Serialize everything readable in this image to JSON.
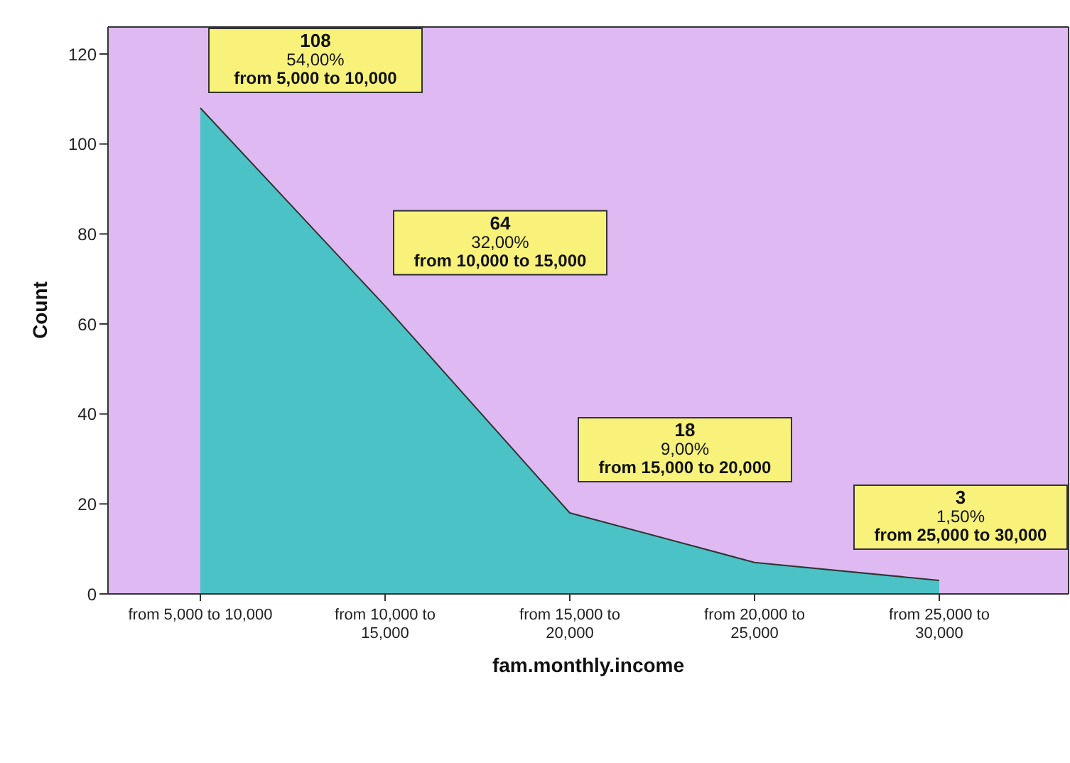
{
  "chart_data": {
    "type": "area",
    "xlabel": "fam.monthly.income",
    "ylabel": "Count",
    "categories": [
      "from 5,000 to 10,000",
      "from 10,000 to 15,000",
      "from 15,000 to 20,000",
      "from 20,000 to 25,000",
      "from 25,000 to 30,000"
    ],
    "series": [
      {
        "color": "#4bc3c6",
        "values": [
          108,
          64,
          18,
          7,
          3
        ],
        "value_labels": [
          "108\n54,00%\nfrom 5,000 to 10,000",
          "64\n32,00%\nfrom 10,000 to 15,000",
          "18\n9,00%\nfrom 15,000 to 20,000",
          null,
          "3\n1,50%\nfrom 25,000 to 30,000"
        ]
      }
    ],
    "ylim": [
      0,
      126
    ],
    "yticks": [
      0,
      20,
      40,
      60,
      80,
      100,
      120
    ]
  }
}
